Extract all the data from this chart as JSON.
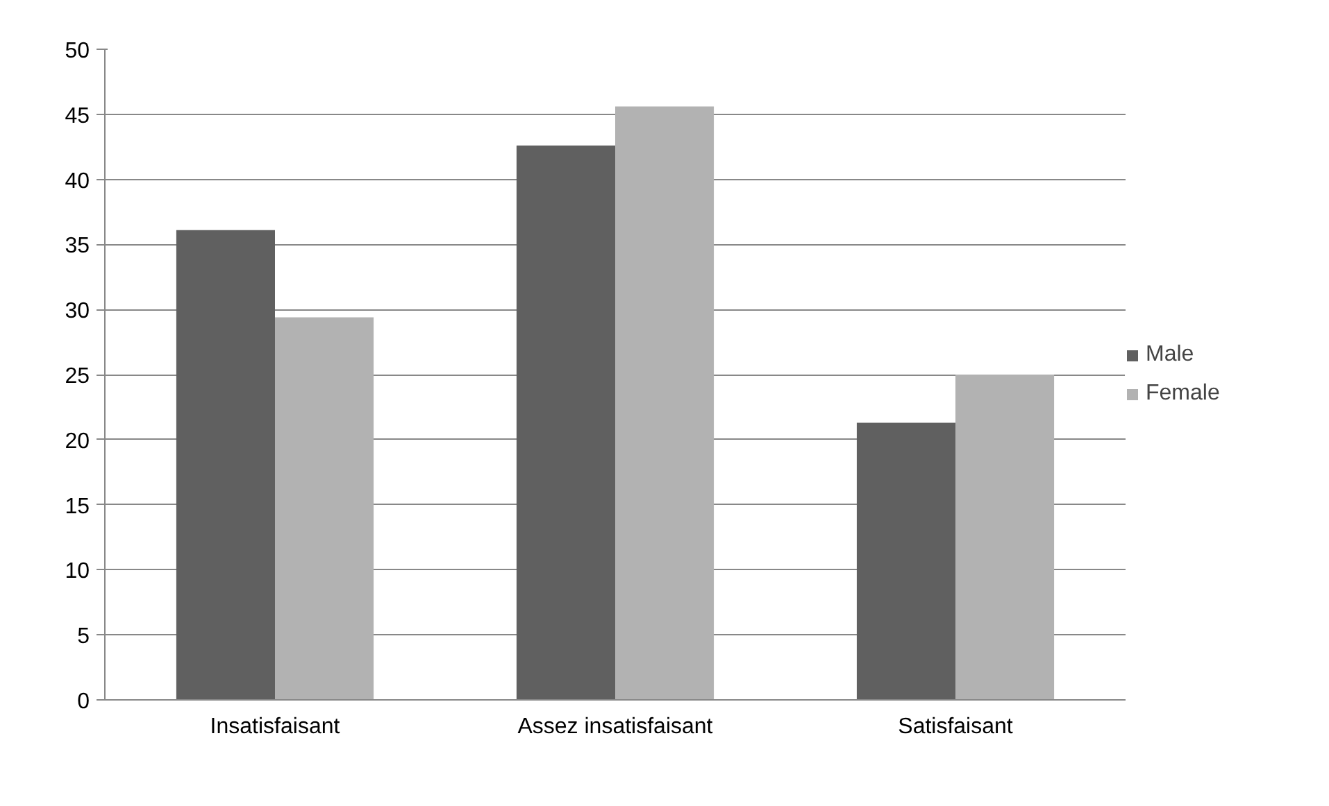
{
  "chart_data": {
    "type": "bar",
    "categories": [
      "Insatisfaisant",
      "Assez insatisfaisant",
      "Satisfaisant"
    ],
    "series": [
      {
        "name": "Male",
        "color": "#606060",
        "values": [
          36.1,
          42.6,
          21.3
        ]
      },
      {
        "name": "Female",
        "color": "#b2b2b2",
        "values": [
          29.4,
          45.6,
          25.0
        ]
      }
    ],
    "ylim": [
      0,
      50
    ],
    "yticks": [
      0,
      5,
      10,
      15,
      20,
      25,
      30,
      35,
      40,
      45,
      50
    ],
    "grid": "y",
    "legend": "right"
  }
}
